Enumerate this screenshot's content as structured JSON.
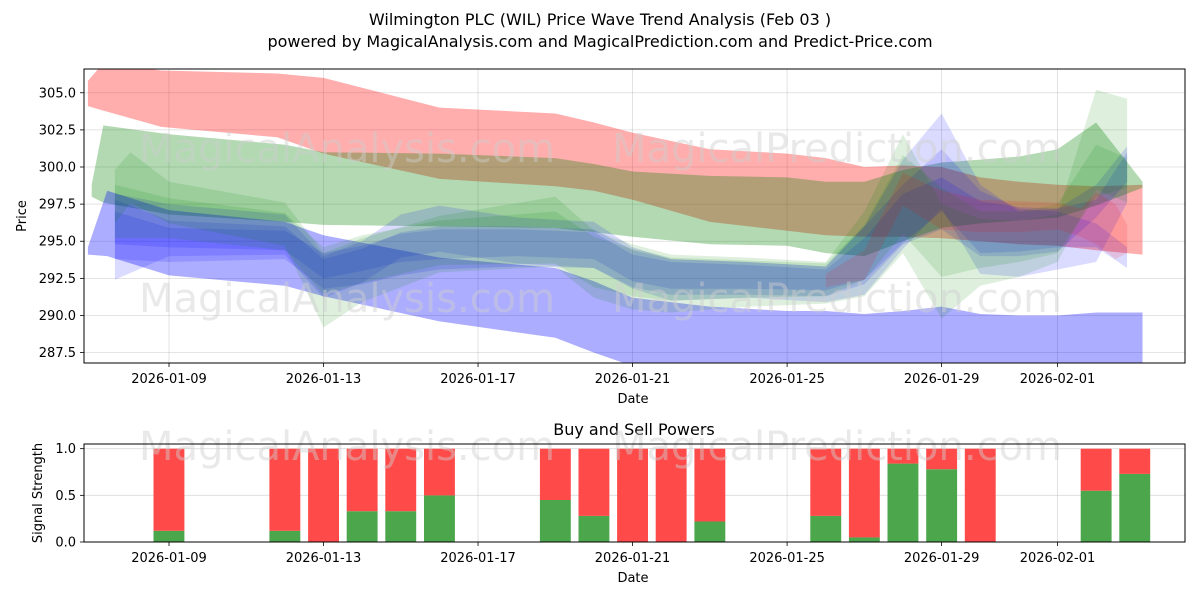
{
  "chart_data": [
    {
      "type": "area",
      "title": "Wilmington PLC (WIL) Price Wave Trend Analysis (Feb 03 )",
      "subtitle": "powered by MagicalAnalysis.com and MagicalPrediction.com and Predict-Price.com",
      "xlabel": "Date",
      "ylabel": "Price",
      "xlim": [
        -2.2,
        26.3
      ],
      "ylim": [
        286.8,
        306.6
      ],
      "x_ticks": [
        {
          "label": "2026-01-09",
          "day": 0
        },
        {
          "label": "2026-01-13",
          "day": 4
        },
        {
          "label": "2026-01-17",
          "day": 8
        },
        {
          "label": "2026-01-21",
          "day": 12
        },
        {
          "label": "2026-01-25",
          "day": 16
        },
        {
          "label": "2026-01-29",
          "day": 20
        },
        {
          "label": "2026-02-01",
          "day": 23
        }
      ],
      "y_ticks": [
        287.5,
        290.0,
        292.5,
        295.0,
        297.5,
        300.0,
        302.5,
        305.0
      ],
      "watermarks": [
        "MagicalAnalysis.com",
        "MagicalPrediction.com"
      ],
      "series": [
        {
          "name": "upper band",
          "color": "#ff0000",
          "opacity": 0.32,
          "x": [
            -2.1,
            -1.7,
            -0.2,
            2.8,
            4,
            7,
            10,
            11,
            12,
            14,
            16,
            17,
            18,
            19,
            20,
            21,
            22,
            23,
            24,
            25.2
          ],
          "top": [
            305.8,
            307.0,
            306.5,
            306.3,
            306.0,
            304.0,
            303.6,
            303.0,
            302.3,
            301.2,
            300.9,
            300.6,
            300.0,
            300.1,
            300.0,
            299.3,
            299.0,
            298.8,
            298.7,
            298.8
          ],
          "bottom": [
            304.1,
            303.8,
            302.7,
            302.0,
            300.9,
            299.2,
            298.7,
            298.4,
            297.8,
            296.3,
            295.7,
            295.4,
            295.3,
            295.3,
            295.2,
            295.0,
            294.8,
            294.7,
            294.4,
            294.1
          ]
        },
        {
          "name": "middle band",
          "color": "#008000",
          "opacity": 0.3,
          "x": [
            -2.0,
            -1.7,
            0,
            3,
            4,
            7,
            10,
            11,
            12,
            14,
            16,
            17,
            18,
            19,
            20,
            21,
            22,
            23,
            24,
            25.2
          ],
          "top": [
            298.8,
            302.8,
            302.2,
            301.5,
            301.0,
            300.9,
            300.6,
            300.2,
            299.7,
            299.4,
            299.3,
            299.0,
            299.0,
            299.8,
            300.3,
            300.5,
            300.7,
            301.2,
            303.0,
            299.0
          ],
          "bottom": [
            298.0,
            297.6,
            296.8,
            296.3,
            296.1,
            296.0,
            295.9,
            295.6,
            295.3,
            294.8,
            294.7,
            294.2,
            294.0,
            295.0,
            295.9,
            296.2,
            296.4,
            296.6,
            297.4,
            298.6
          ]
        },
        {
          "name": "lower band",
          "color": "#0000ff",
          "opacity": 0.32,
          "x": [
            -2.1,
            -1.6,
            0,
            3,
            4,
            7,
            10,
            11,
            12,
            14,
            16,
            17,
            18,
            19,
            20,
            21,
            22,
            23,
            24,
            25.2
          ],
          "top": [
            294.6,
            298.4,
            297.1,
            296.3,
            295.4,
            293.9,
            293.2,
            292.3,
            291.2,
            290.6,
            290.3,
            290.3,
            290.1,
            290.3,
            290.6,
            290.1,
            290.0,
            290.0,
            290.2,
            290.2
          ],
          "bottom": [
            294.1,
            294.0,
            292.7,
            292.0,
            291.3,
            289.6,
            288.5,
            287.5,
            286.6,
            286.4,
            286.2,
            286.0,
            285.9,
            285.8,
            285.7,
            285.8,
            285.8,
            285.9,
            285.8,
            285.7
          ]
        },
        {
          "name": "wave blue 1",
          "color": "#0000ff",
          "opacity": 0.14,
          "x": [
            -1.4,
            0,
            3,
            4,
            5,
            6,
            7,
            9,
            11,
            12,
            13,
            15,
            17,
            18,
            19,
            20,
            21,
            22,
            23,
            24,
            24.8
          ],
          "top": [
            298.2,
            297.5,
            296.8,
            294.0,
            295.0,
            296.8,
            297.4,
            296.6,
            296.3,
            294.6,
            293.8,
            293.6,
            293.3,
            296.0,
            300.5,
            303.6,
            298.8,
            297.0,
            297.2,
            297.8,
            301.0
          ],
          "bottom": [
            292.4,
            294.0,
            294.1,
            291.2,
            292.2,
            293.9,
            294.3,
            293.5,
            293.2,
            291.8,
            291.0,
            291.2,
            290.9,
            291.4,
            294.5,
            297.2,
            292.8,
            292.6,
            293.1,
            293.6,
            297.6
          ]
        },
        {
          "name": "wave blue 2",
          "color": "#0000ff",
          "opacity": 0.14,
          "x": [
            -1.4,
            0,
            3,
            4,
            5,
            6,
            7,
            9,
            11,
            12,
            13,
            15,
            17,
            18,
            19,
            20,
            21,
            22,
            23,
            24,
            24.8
          ],
          "top": [
            297.8,
            296.4,
            296.0,
            293.8,
            294.5,
            295.6,
            296.0,
            296.0,
            295.8,
            294.4,
            293.8,
            293.6,
            293.3,
            296.0,
            298.8,
            301.2,
            298.4,
            297.2,
            297.0,
            296.2,
            294.6
          ],
          "bottom": [
            294.8,
            294.6,
            294.4,
            292.5,
            293.0,
            293.6,
            293.8,
            294.0,
            293.8,
            292.3,
            291.8,
            291.8,
            291.7,
            292.4,
            294.9,
            297.0,
            294.2,
            294.3,
            294.6,
            294.6,
            293.2
          ]
        },
        {
          "name": "wave blue 3",
          "color": "#0000ff",
          "opacity": 0.14,
          "x": [
            -1.4,
            0,
            3,
            4,
            5,
            6,
            7,
            9,
            11,
            12,
            13,
            15,
            17,
            18,
            19,
            20,
            21,
            22,
            23,
            24,
            24.8
          ],
          "top": [
            297.0,
            295.9,
            295.7,
            294.2,
            294.7,
            295.5,
            295.8,
            295.8,
            295.6,
            294.1,
            293.6,
            293.4,
            293.1,
            295.2,
            298.2,
            299.3,
            297.7,
            297.3,
            297.2,
            298.8,
            301.4
          ],
          "bottom": [
            293.8,
            293.6,
            293.8,
            291.8,
            292.1,
            292.7,
            293.1,
            293.3,
            293.2,
            291.9,
            291.4,
            291.4,
            291.3,
            292.1,
            294.8,
            295.8,
            294.0,
            294.0,
            294.3,
            296.6,
            299.0
          ]
        },
        {
          "name": "wave green 1",
          "color": "#008000",
          "opacity": 0.13,
          "x": [
            -1.4,
            -1.0,
            0,
            3,
            4,
            5,
            7,
            10,
            11,
            12,
            13,
            15,
            17,
            18,
            19,
            20,
            21,
            22,
            23,
            24,
            24.8
          ],
          "top": [
            299.8,
            301.0,
            299.0,
            297.6,
            294.2,
            295.2,
            296.7,
            298.0,
            295.7,
            294.8,
            294.1,
            293.9,
            293.6,
            297.0,
            302.2,
            297.5,
            296.5,
            296.4,
            296.8,
            305.2,
            304.6
          ],
          "bottom": [
            296.2,
            297.6,
            296.2,
            294.7,
            289.2,
            290.9,
            292.9,
            293.3,
            291.2,
            290.4,
            290.2,
            290.6,
            290.8,
            291.3,
            294.2,
            289.8,
            292.0,
            292.6,
            293.6,
            298.5,
            297.6
          ]
        },
        {
          "name": "wave green 2",
          "color": "#008000",
          "opacity": 0.13,
          "x": [
            -1.4,
            0,
            3,
            4,
            5,
            7,
            10,
            11,
            12,
            13,
            15,
            17,
            18,
            19,
            20,
            21,
            22,
            23,
            24,
            24.8
          ],
          "top": [
            298.8,
            297.9,
            296.9,
            294.6,
            295.4,
            296.4,
            297.0,
            295.3,
            294.5,
            293.9,
            293.7,
            293.5,
            296.1,
            300.8,
            298.6,
            297.0,
            297.0,
            297.5,
            301.5,
            300.6
          ],
          "bottom": [
            295.2,
            295.2,
            294.4,
            291.4,
            292.2,
            293.4,
            293.5,
            291.9,
            291.3,
            291.0,
            291.2,
            291.3,
            292.4,
            295.5,
            292.6,
            293.2,
            293.6,
            294.2,
            298.0,
            298.6
          ]
        },
        {
          "name": "wave red 1",
          "color": "#ff0000",
          "opacity": 0.12,
          "x": [
            17,
            18,
            19,
            20,
            21,
            22,
            23,
            23.6,
            24,
            24.5,
            24.8
          ],
          "top": [
            292.8,
            294.4,
            299.6,
            298.4,
            297.8,
            297.7,
            297.6,
            297.2,
            298.3,
            297.5,
            296.1
          ],
          "bottom": [
            291.9,
            292.4,
            297.4,
            295.8,
            295.6,
            295.6,
            295.8,
            295.3,
            294.8,
            293.8,
            294.2
          ]
        }
      ]
    },
    {
      "type": "bar",
      "title": "Buy and Sell Powers",
      "xlabel": "Date",
      "ylabel": "Signal Strength",
      "ylim": [
        0,
        1.05
      ],
      "y_ticks": [
        0.0,
        0.5,
        1.0
      ],
      "xlim": [
        -2.2,
        26.3
      ],
      "x_ticks": [
        {
          "label": "2026-01-09",
          "day": 0
        },
        {
          "label": "2026-01-13",
          "day": 4
        },
        {
          "label": "2026-01-17",
          "day": 8
        },
        {
          "label": "2026-01-21",
          "day": 12
        },
        {
          "label": "2026-01-25",
          "day": 16
        },
        {
          "label": "2026-01-29",
          "day": 20
        },
        {
          "label": "2026-02-01",
          "day": 23
        }
      ],
      "buy_color": "#4ca64c",
      "sell_color": "#ff4a4a",
      "days": [
        0,
        3,
        4,
        5,
        6,
        7,
        10,
        11,
        12,
        13,
        14,
        17,
        18,
        19,
        20,
        21,
        24,
        25
      ],
      "buy": [
        0.12,
        0.12,
        0.0,
        0.33,
        0.33,
        0.5,
        0.45,
        0.28,
        0.0,
        0.0,
        0.22,
        0.28,
        0.05,
        0.84,
        0.78,
        0.0,
        0.55,
        0.73
      ],
      "sell": [
        0.88,
        0.88,
        1.0,
        0.67,
        0.67,
        0.5,
        0.55,
        0.72,
        1.0,
        1.0,
        0.78,
        0.72,
        0.95,
        0.16,
        0.22,
        1.0,
        0.45,
        0.27
      ]
    }
  ]
}
